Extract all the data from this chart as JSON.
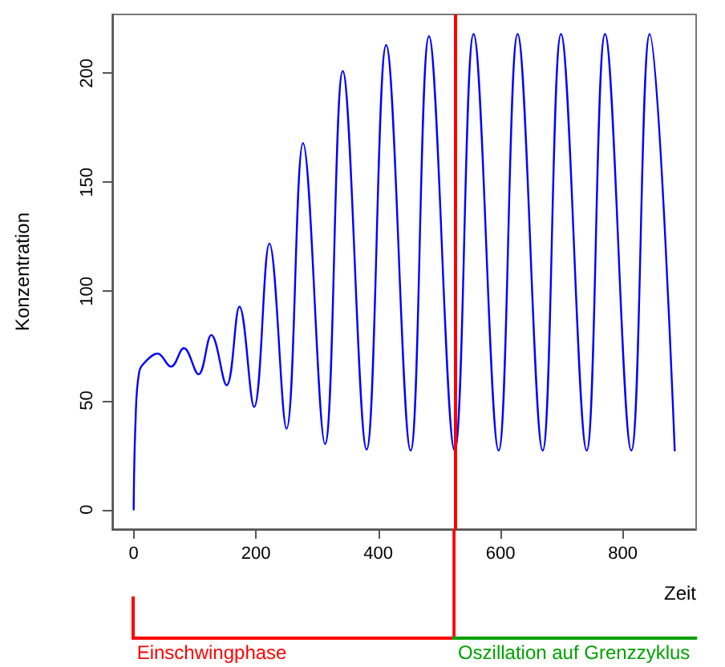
{
  "chart_data": {
    "type": "line",
    "xlabel": "Zeit",
    "ylabel": "Konzentration",
    "x": [
      0,
      3,
      9,
      20,
      39,
      61,
      82,
      106,
      127,
      152,
      173,
      197,
      222,
      250,
      277,
      313,
      342,
      381,
      413,
      453,
      483,
      525,
      556,
      597,
      628,
      669,
      699,
      741,
      771,
      814,
      844,
      885
    ],
    "series": [
      {
        "color": "#0000ff",
        "values": [
          0,
          40,
          63,
          68,
          71.5,
          65.5,
          74,
          62,
          80,
          57,
          93,
          47,
          122,
          37,
          168,
          30,
          201,
          27.5,
          213,
          27,
          217,
          27,
          218,
          27,
          218,
          27,
          218,
          27,
          218,
          27,
          218,
          27
        ]
      }
    ],
    "xlim": [
      -35,
      920
    ],
    "ylim": [
      -9,
      227
    ],
    "xticks": [
      0,
      200,
      400,
      600,
      800
    ],
    "yticks": [
      0,
      50,
      100,
      150,
      200
    ],
    "grid": false,
    "marker": "none",
    "line_style": "solid",
    "ref_lines": [
      {
        "axis": "x",
        "value": 525,
        "color": "#ff0000"
      }
    ],
    "annotations": [
      "Einschwingphase",
      "Oszillation auf Grenzzyklus"
    ]
  }
}
